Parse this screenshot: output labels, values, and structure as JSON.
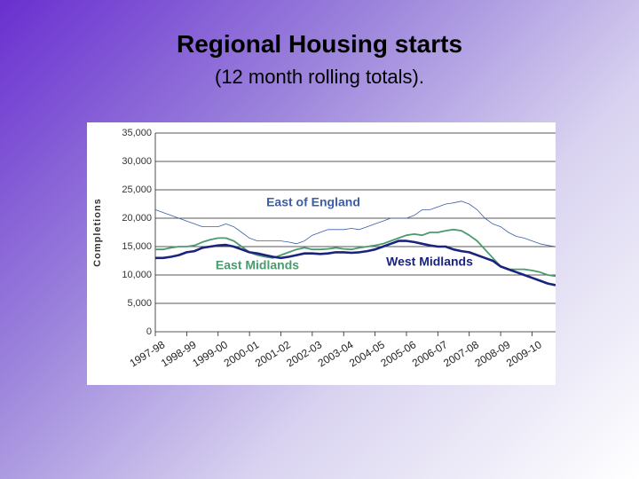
{
  "chart_data": {
    "type": "line",
    "title": "Regional Housing starts",
    "subtitle": "(12 month rolling totals).",
    "y_label": "Completions",
    "categories": [
      "1997-98",
      null,
      null,
      null,
      "1998-99",
      null,
      null,
      null,
      "1999-00",
      null,
      null,
      null,
      "2000-01",
      null,
      null,
      null,
      "2001-02",
      null,
      null,
      null,
      "2002-03",
      null,
      null,
      null,
      "2003-04",
      null,
      null,
      null,
      "2004-05",
      null,
      null,
      null,
      "2005-06",
      null,
      null,
      null,
      "2006-07",
      null,
      null,
      null,
      "2007-08",
      null,
      null,
      null,
      "2008-09",
      null,
      null,
      null,
      "2009-10",
      null,
      null,
      null
    ],
    "series": [
      {
        "name": "East of England",
        "color": "#3b5da8",
        "values": [
          21500,
          21000,
          20500,
          20000,
          19500,
          19000,
          18500,
          18500,
          18500,
          19000,
          18500,
          17500,
          16500,
          16000,
          16000,
          16000,
          16000,
          15800,
          15500,
          16000,
          17000,
          17500,
          18000,
          18000,
          18000,
          18200,
          18000,
          18500,
          19000,
          19500,
          20000,
          20000,
          20000,
          20500,
          21500,
          21500,
          22000,
          22500,
          22700,
          23000,
          22500,
          21500,
          20000,
          19000,
          18500,
          17500,
          16800,
          16500,
          16000,
          15500,
          15200,
          15000
        ]
      },
      {
        "name": "East Midlands",
        "color": "#4a9a6e",
        "values": [
          14500,
          14500,
          14800,
          15000,
          15000,
          15200,
          15800,
          16200,
          16500,
          16500,
          16000,
          15000,
          14000,
          13500,
          13200,
          13000,
          13500,
          14000,
          14500,
          14800,
          14500,
          14500,
          14600,
          14800,
          14600,
          14500,
          14800,
          15000,
          15200,
          15500,
          16000,
          16500,
          17000,
          17200,
          17000,
          17500,
          17500,
          17800,
          18000,
          17800,
          17000,
          16000,
          14500,
          13000,
          11500,
          11000,
          11000,
          11000,
          10800,
          10500,
          10000,
          9800
        ]
      },
      {
        "name": "West Midlands",
        "color": "#1a237e",
        "values": [
          13000,
          13000,
          13200,
          13500,
          14000,
          14200,
          14800,
          15000,
          15200,
          15300,
          15000,
          14500,
          14000,
          13800,
          13500,
          13200,
          13000,
          13200,
          13500,
          13800,
          13800,
          13700,
          13800,
          14000,
          14000,
          13900,
          14000,
          14200,
          14500,
          15000,
          15500,
          16000,
          16000,
          15800,
          15500,
          15200,
          15000,
          15000,
          14500,
          14200,
          14000,
          13500,
          13000,
          12500,
          11500,
          11000,
          10500,
          10000,
          9500,
          9000,
          8500,
          8200
        ]
      }
    ],
    "ylim": [
      0,
      35000
    ],
    "yticks": [
      0,
      {
        "value": 5000,
        "label": "5,000"
      },
      {
        "value": 10000,
        "label": "10,000"
      },
      {
        "value": 15000,
        "label": "15,000"
      },
      {
        "value": 20000,
        "label": "20,000"
      },
      {
        "value": 25000,
        "label": "25,000"
      },
      {
        "value": 30000,
        "label": "30,000"
      },
      {
        "value": 35000,
        "label": "35,000"
      }
    ],
    "grid": true
  }
}
